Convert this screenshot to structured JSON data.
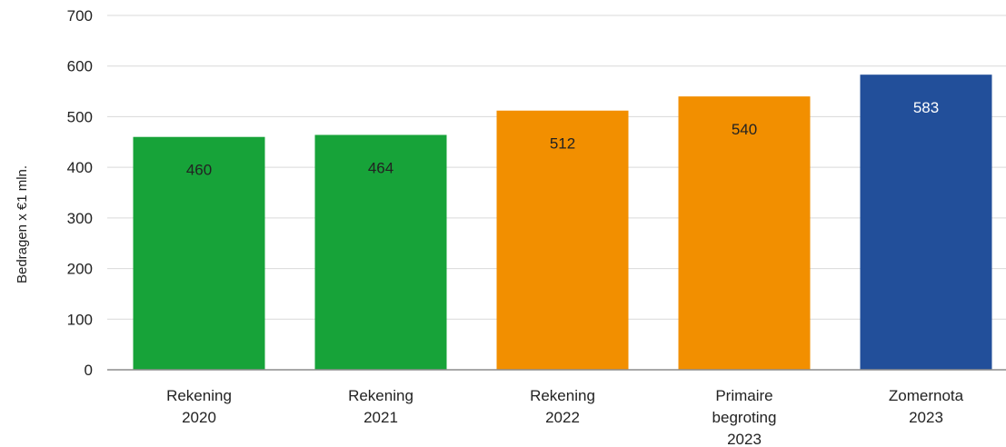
{
  "chart_data": {
    "type": "bar",
    "categories": [
      [
        "Rekening",
        "2020"
      ],
      [
        "Rekening",
        "2021"
      ],
      [
        "Rekening",
        "2022"
      ],
      [
        "Primaire",
        "begroting",
        "2023"
      ],
      [
        "Zomernota",
        "2023"
      ]
    ],
    "values": [
      460,
      464,
      512,
      540,
      583
    ],
    "value_labels": [
      "460",
      "464",
      "512",
      "540",
      "583"
    ],
    "bar_colors": [
      "#17a339",
      "#17a339",
      "#f28f00",
      "#f28f00",
      "#224f9a"
    ],
    "value_label_colors": [
      "#222222",
      "#222222",
      "#222222",
      "#222222",
      "#ffffff"
    ],
    "ylabel": "Bedragen x €1 mln.",
    "ylim": [
      0,
      700
    ],
    "yticks": [
      0,
      100,
      200,
      300,
      400,
      500,
      600,
      700
    ],
    "grid": true,
    "legend": "none"
  }
}
